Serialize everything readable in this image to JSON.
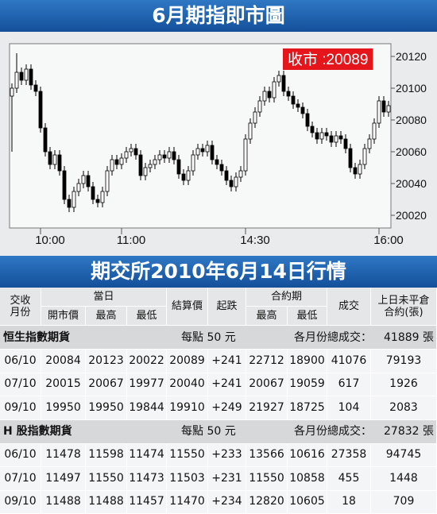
{
  "chart_data": {
    "type": "candlestick",
    "title": "6月期指即市圖",
    "annotation": "收市 :20089",
    "x": [
      0,
      1,
      2,
      3,
      4,
      5,
      6,
      7,
      8,
      9,
      10,
      11,
      12,
      13,
      14,
      15,
      16,
      17,
      18,
      19,
      20,
      21,
      22,
      23,
      24,
      25,
      26,
      27,
      28,
      29,
      30,
      31,
      32,
      33,
      34,
      35,
      36,
      37,
      38,
      39,
      40,
      41,
      42,
      43,
      44,
      45,
      46,
      47,
      48,
      49,
      50,
      51,
      52,
      53,
      54,
      55,
      56,
      57,
      58,
      59,
      60,
      61,
      62,
      63,
      64,
      65,
      66,
      67,
      68,
      69,
      70,
      71,
      72,
      73,
      74,
      75,
      76,
      77,
      78,
      79
    ],
    "open": [
      20095,
      20100,
      20110,
      20105,
      20112,
      20102,
      20098,
      20075,
      20060,
      20052,
      20058,
      20048,
      20030,
      20025,
      20035,
      20040,
      20045,
      20038,
      20030,
      20028,
      20035,
      20048,
      20055,
      20052,
      20056,
      20060,
      20062,
      20058,
      20045,
      20050,
      20052,
      20055,
      20058,
      20056,
      20060,
      20055,
      20046,
      20042,
      20048,
      20058,
      20062,
      20060,
      20064,
      20055,
      20052,
      20048,
      20042,
      20038,
      20044,
      20048,
      20068,
      20078,
      20085,
      20092,
      20098,
      20094,
      20104,
      20108,
      20098,
      20095,
      20090,
      20088,
      20084,
      20076,
      20072,
      20068,
      20072,
      20070,
      20066,
      20070,
      20068,
      20062,
      20050,
      20046,
      20052,
      20062,
      20068,
      20078,
      20092,
      20085
    ],
    "high": [
      20103,
      20122,
      20113,
      20115,
      20115,
      20105,
      20101,
      20078,
      20063,
      20061,
      20061,
      20051,
      20033,
      20038,
      20043,
      20048,
      20048,
      20041,
      20033,
      20038,
      20051,
      20058,
      20058,
      20059,
      20063,
      20065,
      20065,
      20061,
      20053,
      20055,
      20058,
      20061,
      20061,
      20063,
      20063,
      20058,
      20049,
      20051,
      20061,
      20065,
      20065,
      20067,
      20067,
      20058,
      20055,
      20051,
      20045,
      20047,
      20051,
      20071,
      20081,
      20088,
      20095,
      20101,
      20101,
      20107,
      20111,
      20111,
      20101,
      20098,
      20093,
      20091,
      20087,
      20079,
      20075,
      20075,
      20075,
      20073,
      20073,
      20073,
      20071,
      20065,
      20053,
      20055,
      20065,
      20071,
      20081,
      20095,
      20095,
      20092
    ],
    "low": [
      20060,
      20097,
      20102,
      20102,
      20099,
      20095,
      20072,
      20057,
      20049,
      20049,
      20045,
      20027,
      20022,
      20022,
      20032,
      20037,
      20035,
      20027,
      20025,
      20025,
      20032,
      20045,
      20049,
      20049,
      20053,
      20057,
      20055,
      20042,
      20042,
      20047,
      20049,
      20052,
      20053,
      20053,
      20052,
      20043,
      20039,
      20039,
      20045,
      20055,
      20057,
      20057,
      20052,
      20049,
      20045,
      20039,
      20035,
      20035,
      20041,
      20045,
      20065,
      20075,
      20082,
      20089,
      20091,
      20091,
      20101,
      20095,
      20092,
      20087,
      20085,
      20081,
      20073,
      20069,
      20065,
      20065,
      20067,
      20063,
      20063,
      20065,
      20059,
      20047,
      20043,
      20043,
      20049,
      20059,
      20065,
      20075,
      20082,
      20082
    ],
    "close": [
      20100,
      20110,
      20105,
      20112,
      20102,
      20098,
      20075,
      20060,
      20052,
      20058,
      20048,
      20030,
      20025,
      20035,
      20040,
      20045,
      20038,
      20030,
      20028,
      20035,
      20048,
      20055,
      20052,
      20056,
      20060,
      20062,
      20058,
      20045,
      20050,
      20052,
      20055,
      20058,
      20056,
      20060,
      20055,
      20046,
      20042,
      20048,
      20058,
      20062,
      20060,
      20064,
      20055,
      20052,
      20048,
      20042,
      20038,
      20044,
      20048,
      20068,
      20078,
      20085,
      20092,
      20098,
      20094,
      20104,
      20108,
      20098,
      20095,
      20090,
      20088,
      20084,
      20076,
      20072,
      20068,
      20072,
      20070,
      20066,
      20070,
      20068,
      20062,
      20050,
      20046,
      20052,
      20062,
      20068,
      20078,
      20092,
      20085,
      20089
    ],
    "up_color": "#ffffff",
    "down_color": "#000000",
    "annotation_color": "#e4151b",
    "xlim": [
      -0.5,
      79.5
    ],
    "xticks": [
      {
        "value": 6,
        "label": "10:00"
      },
      {
        "value": 23,
        "label": "11:00"
      },
      {
        "value": 49,
        "label": "14:30"
      },
      {
        "value": 77,
        "label": "16:00"
      }
    ],
    "ylim": [
      20012,
      20128
    ],
    "yticks": [
      20020,
      20040,
      20060,
      20080,
      20100,
      20120
    ],
    "grid": false
  },
  "table": {
    "title": "期交所2010年6月14日行情",
    "head": {
      "month": [
        "交收",
        "月份"
      ],
      "today": "當日",
      "open": "開市價",
      "today_high": "最高",
      "today_low": "最低",
      "settle": "結算價",
      "change": "起跌",
      "contract": "合約期",
      "contract_high": "最高",
      "contract_low": "最低",
      "volume": "成交",
      "oi": [
        "上日未平倉",
        "合約(張)"
      ]
    },
    "sections": [
      {
        "name": "恒生指數期貨",
        "note": "每點 50 元",
        "total_label": "各月份總成交：",
        "total": "41889 張",
        "rows": [
          [
            "06/10",
            "20084",
            "20123",
            "20022",
            "20089",
            "+241",
            "22712",
            "18900",
            "41076",
            "79193"
          ],
          [
            "07/10",
            "20015",
            "20067",
            "19977",
            "20040",
            "+241",
            "20067",
            "19059",
            "617",
            "1926"
          ],
          [
            "09/10",
            "19950",
            "19950",
            "19844",
            "19910",
            "+249",
            "21927",
            "18725",
            "104",
            "2083"
          ]
        ]
      },
      {
        "name": "H 股指數期貨",
        "note": "每點 50 元",
        "total_label": "各月份總成交：",
        "total": "27832 張",
        "rows": [
          [
            "06/10",
            "11478",
            "11598",
            "11474",
            "11550",
            "+233",
            "13566",
            "10616",
            "27358",
            "94745"
          ],
          [
            "07/10",
            "11497",
            "11550",
            "11473",
            "11503",
            "+231",
            "11550",
            "10858",
            "455",
            "1448"
          ],
          [
            "09/10",
            "11488",
            "11488",
            "11457",
            "11470",
            "+234",
            "12820",
            "10605",
            "18",
            "709"
          ]
        ]
      }
    ]
  }
}
